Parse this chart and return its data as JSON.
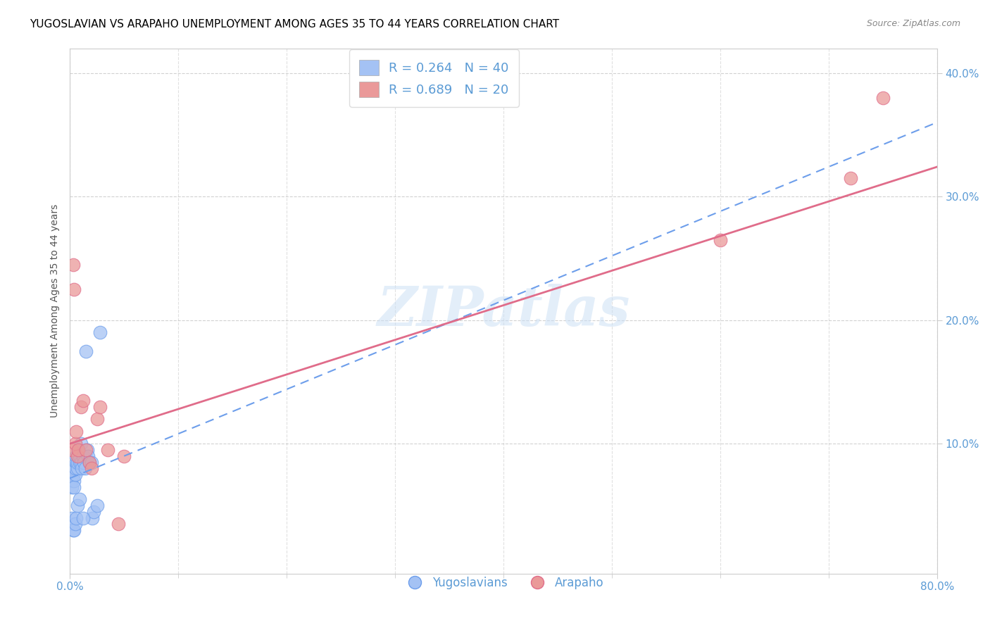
{
  "title": "YUGOSLAVIAN VS ARAPAHO UNEMPLOYMENT AMONG AGES 35 TO 44 YEARS CORRELATION CHART",
  "source": "Source: ZipAtlas.com",
  "ylabel": "Unemployment Among Ages 35 to 44 years",
  "xlim": [
    0.0,
    0.8
  ],
  "ylim": [
    -0.005,
    0.42
  ],
  "xticks": [
    0.0,
    0.8
  ],
  "xtick_labels": [
    "0.0%",
    "80.0%"
  ],
  "yticks": [
    0.1,
    0.2,
    0.3,
    0.4
  ],
  "ytick_labels": [
    "10.0%",
    "20.0%",
    "30.0%",
    "40.0%"
  ],
  "legend_labels": [
    "Yugoslavians",
    "Arapaho"
  ],
  "blue_color": "#a4c2f4",
  "pink_color": "#ea9999",
  "blue_line_color": "#6d9eeb",
  "pink_line_color": "#e06c8a",
  "r_blue": 0.264,
  "n_blue": 40,
  "r_pink": 0.689,
  "n_pink": 20,
  "watermark": "ZIPatlas",
  "blue_scatter_x": [
    0.001,
    0.002,
    0.003,
    0.003,
    0.004,
    0.004,
    0.005,
    0.005,
    0.006,
    0.006,
    0.007,
    0.007,
    0.008,
    0.008,
    0.009,
    0.009,
    0.01,
    0.01,
    0.011,
    0.012,
    0.013,
    0.014,
    0.015,
    0.016,
    0.017,
    0.018,
    0.02,
    0.021,
    0.022,
    0.025,
    0.001,
    0.002,
    0.003,
    0.004,
    0.005,
    0.006,
    0.007,
    0.009,
    0.012,
    0.028
  ],
  "blue_scatter_y": [
    0.07,
    0.065,
    0.075,
    0.08,
    0.07,
    0.065,
    0.075,
    0.08,
    0.085,
    0.09,
    0.08,
    0.085,
    0.09,
    0.095,
    0.085,
    0.09,
    0.1,
    0.085,
    0.08,
    0.09,
    0.085,
    0.08,
    0.175,
    0.095,
    0.09,
    0.085,
    0.085,
    0.04,
    0.045,
    0.05,
    0.035,
    0.04,
    0.03,
    0.03,
    0.035,
    0.04,
    0.05,
    0.055,
    0.04,
    0.19
  ],
  "pink_scatter_x": [
    0.002,
    0.003,
    0.004,
    0.005,
    0.006,
    0.007,
    0.008,
    0.01,
    0.012,
    0.015,
    0.018,
    0.02,
    0.025,
    0.028,
    0.035,
    0.045,
    0.05,
    0.6,
    0.72,
    0.75
  ],
  "pink_scatter_y": [
    0.095,
    0.245,
    0.225,
    0.1,
    0.11,
    0.09,
    0.095,
    0.13,
    0.135,
    0.095,
    0.085,
    0.08,
    0.12,
    0.13,
    0.095,
    0.035,
    0.09,
    0.265,
    0.315,
    0.38
  ],
  "background_color": "#ffffff",
  "grid_color": "#cccccc",
  "tick_color": "#5b9bd5",
  "title_color": "#000000",
  "title_fontsize": 11,
  "axis_label_fontsize": 10,
  "blue_line_intercept": 0.072,
  "blue_line_slope": 0.36,
  "pink_line_intercept": 0.1,
  "pink_line_slope": 0.28
}
